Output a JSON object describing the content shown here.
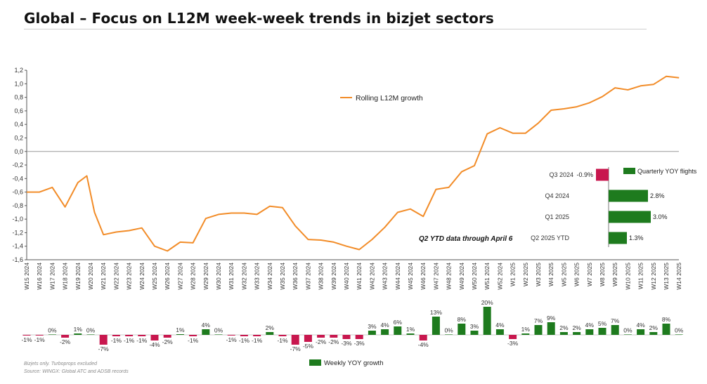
{
  "title": "Global – Focus on L12M week-week trends in bizjet sectors",
  "colors": {
    "line": "#f28c28",
    "weekly_up": "#1e7b1e",
    "weekly_down": "#c8174e",
    "quarter_up": "#1e7b1e",
    "quarter_down": "#c8174e",
    "zero_line": "#999999",
    "axis": "#555555"
  },
  "footnotes": {
    "note": "Bizjets only. Turboprops excluded",
    "source": "Source: WINGX: Global ATC and ADSB records"
  },
  "chart_data": [
    {
      "type": "line",
      "y_tick_labels": [
        "1,2",
        "1,0",
        "0,8",
        "0,6",
        "0,4",
        "0,2",
        "0,0",
        "-0,2",
        "-0,4",
        "-0,6",
        "-0,8",
        "-1,0",
        "-1,2",
        "-1,4",
        "-1,6"
      ],
      "ylim": [
        -1.6,
        1.2
      ],
      "grid": false,
      "legend_position": "top-center",
      "categories": [
        "W15 2024",
        "W16 2024",
        "W17 2024",
        "W18 2024",
        "W19 2024",
        "W20 2024",
        "W21 2024",
        "W22 2024",
        "W23 2024",
        "W24 2024",
        "W25 2024",
        "W26 2024",
        "W27 2024",
        "W28 2024",
        "W29 2024",
        "W30 2024",
        "W31 2024",
        "W32 2024",
        "W33 2024",
        "W34 2024",
        "W35 2024",
        "W36 2024",
        "W37 2024",
        "W38 2024",
        "W39 2024",
        "W40 2024",
        "W41 2024",
        "W42 2024",
        "W43 2024",
        "W44 2024",
        "W45 2024",
        "W46 2024",
        "W47 2024",
        "W48 2024",
        "W49 2024",
        "W50 2024",
        "W51 2024",
        "W52 2024",
        "W1 2025",
        "W2 2025",
        "W3 2025",
        "W4 2025",
        "W5 2025",
        "W6 2025",
        "W7 2025",
        "W8 2025",
        "W9 2025",
        "W10 2025",
        "W11 2025",
        "W12 2025",
        "W13 2025",
        "W14 2025"
      ],
      "series": [
        {
          "name": "Rolling L12M growth",
          "points": [
            [
              0,
              -0.6
            ],
            [
              1,
              -0.6
            ],
            [
              2,
              -0.53
            ],
            [
              3,
              -0.82
            ],
            [
              4,
              -0.46
            ],
            [
              4.7,
              -0.36
            ],
            [
              5.3,
              -0.9
            ],
            [
              6,
              -1.23
            ],
            [
              7,
              -1.19
            ],
            [
              8,
              -1.17
            ],
            [
              9,
              -1.13
            ],
            [
              10,
              -1.4
            ],
            [
              11,
              -1.47
            ],
            [
              12,
              -1.34
            ],
            [
              13,
              -1.35
            ],
            [
              14,
              -0.99
            ],
            [
              15,
              -0.93
            ],
            [
              16,
              -0.91
            ],
            [
              17,
              -0.91
            ],
            [
              18,
              -0.93
            ],
            [
              19,
              -0.81
            ],
            [
              20,
              -0.83
            ],
            [
              21,
              -1.1
            ],
            [
              22,
              -1.3
            ],
            [
              23,
              -1.31
            ],
            [
              24,
              -1.34
            ],
            [
              25,
              -1.4
            ],
            [
              26,
              -1.45
            ],
            [
              27,
              -1.3
            ],
            [
              28,
              -1.12
            ],
            [
              29,
              -0.9
            ],
            [
              30,
              -0.85
            ],
            [
              31,
              -0.96
            ],
            [
              32,
              -0.56
            ],
            [
              33,
              -0.53
            ],
            [
              34,
              -0.3
            ],
            [
              35,
              -0.21
            ],
            [
              36,
              0.26
            ],
            [
              37,
              0.35
            ],
            [
              38,
              0.27
            ],
            [
              39,
              0.27
            ],
            [
              40,
              0.42
            ],
            [
              41,
              0.61
            ],
            [
              42,
              0.63
            ],
            [
              43,
              0.66
            ],
            [
              44,
              0.72
            ],
            [
              45,
              0.81
            ],
            [
              46,
              0.94
            ],
            [
              47,
              0.91
            ],
            [
              48,
              0.97
            ],
            [
              49,
              0.99
            ],
            [
              50,
              1.11
            ],
            [
              51,
              1.09
            ]
          ]
        }
      ]
    },
    {
      "type": "bar",
      "categories": [
        "W15 2024",
        "W16 2024",
        "W17 2024",
        "W18 2024",
        "W19 2024",
        "W20 2024",
        "W21 2024",
        "W22 2024",
        "W23 2024",
        "W24 2024",
        "W25 2024",
        "W26 2024",
        "W27 2024",
        "W28 2024",
        "W29 2024",
        "W30 2024",
        "W31 2024",
        "W32 2024",
        "W33 2024",
        "W34 2024",
        "W35 2024",
        "W36 2024",
        "W37 2024",
        "W38 2024",
        "W39 2024",
        "W40 2024",
        "W41 2024",
        "W42 2024",
        "W43 2024",
        "W44 2024",
        "W45 2024",
        "W46 2024",
        "W47 2024",
        "W48 2024",
        "W49 2024",
        "W50 2024",
        "W51 2024",
        "W52 2024",
        "W1 2025",
        "W2 2025",
        "W3 2025",
        "W4 2025",
        "W5 2025",
        "W6 2025",
        "W7 2025",
        "W8 2025",
        "W9 2025",
        "W10 2025",
        "W11 2025",
        "W12 2025",
        "W13 2025",
        "W14 2025"
      ],
      "series": [
        {
          "name": "Weekly YOY growth",
          "values": [
            -0.5,
            -0.5,
            0.3,
            -2,
            1,
            0.3,
            -7,
            -1,
            -1,
            -1,
            -4,
            -2,
            0.5,
            -1,
            4,
            0.3,
            -0.5,
            -1,
            -1,
            2,
            -1,
            -7,
            -5,
            -2,
            -2,
            -3,
            -3,
            3,
            4,
            6,
            1,
            -4,
            13,
            0.3,
            8,
            3,
            20,
            4,
            -3,
            1,
            7,
            9,
            2,
            2,
            4,
            5,
            7,
            0.3,
            4,
            2,
            8,
            0.3
          ],
          "labels": [
            "-1%",
            "-1%",
            "0%",
            "-2%",
            "1%",
            "0%",
            "-7%",
            "-1%",
            "-1%",
            "-1%",
            "-4%",
            "-2%",
            "1%",
            "-1%",
            "4%",
            "0%",
            "-1%",
            "-1%",
            "-1%",
            "2%",
            "-1%",
            "-7%",
            "-5%",
            "-2%",
            "-2%",
            "-3%",
            "-3%",
            "3%",
            "4%",
            "6%",
            "1%",
            "-4%",
            "13%",
            "0%",
            "8%",
            "3%",
            "20%",
            "4%",
            "-3%",
            "1%",
            "7%",
            "9%",
            "2%",
            "2%",
            "4%",
            "5%",
            "7%",
            "0%",
            "4%",
            "2%",
            "8%",
            "0%"
          ]
        }
      ]
    },
    {
      "type": "bar",
      "orientation": "horizontal",
      "categories": [
        "Q3 2024",
        "Q4 2024",
        "Q1 2025",
        "Q2 2025 YTD"
      ],
      "series": [
        {
          "name": "Quarterly YOY flights",
          "values": [
            -0.9,
            2.8,
            3.0,
            1.3
          ],
          "labels": [
            "-0.9%",
            "2.8%",
            "3.0%",
            "1.3%"
          ]
        }
      ],
      "annotation": "Q2 YTD data through April 6"
    }
  ]
}
